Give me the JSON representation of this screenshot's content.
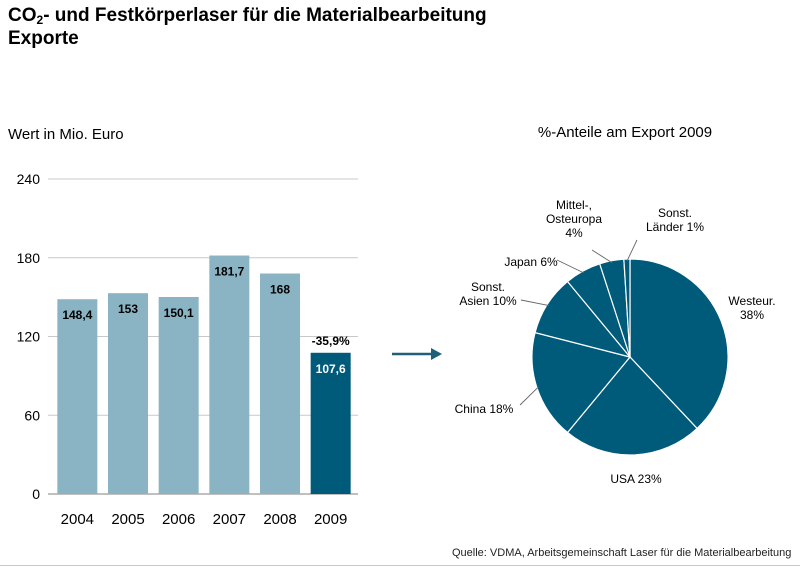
{
  "page": {
    "title_prefix": "CO",
    "title_subscript": "2",
    "title_rest": "- und Festkörperlaser für die Materialbearbeitung",
    "title_line2": "Exporte",
    "source": "Quelle: VDMA, Arbeitsgemeinschaft Laser für die Materialbearbeitung"
  },
  "chart_data": [
    {
      "type": "bar",
      "ylabel": "Wert in Mio. Euro",
      "categories": [
        "2004",
        "2005",
        "2006",
        "2007",
        "2008",
        "2009"
      ],
      "values": [
        148.4,
        153,
        150.1,
        181.7,
        168,
        107.6
      ],
      "value_labels": [
        "148,4",
        "153",
        "150,1",
        "181,7",
        "168",
        "107,6"
      ],
      "ylim": [
        0,
        240
      ],
      "yticks": [
        0,
        60,
        120,
        180,
        240
      ],
      "annotation": "-35,9%",
      "grid": true,
      "colors": {
        "default": "#8ab4c4",
        "highlight": "#005a7a"
      }
    },
    {
      "type": "pie",
      "title": "%-Anteile am Export 2009",
      "slices": [
        {
          "label_lines": [
            "Westeur.",
            "38%"
          ],
          "value": 38
        },
        {
          "label_lines": [
            "USA 23%"
          ],
          "value": 23
        },
        {
          "label_lines": [
            "China 18%"
          ],
          "value": 18
        },
        {
          "label_lines": [
            "Sonst.",
            "Asien 10%"
          ],
          "value": 10
        },
        {
          "label_lines": [
            "Japan 6%"
          ],
          "value": 6
        },
        {
          "label_lines": [
            "Mittel-,",
            "Osteuropa",
            "4%"
          ],
          "value": 4
        },
        {
          "label_lines": [
            "Sonst.",
            "Länder 1%"
          ],
          "value": 1
        }
      ],
      "color": "#005a7a"
    }
  ]
}
